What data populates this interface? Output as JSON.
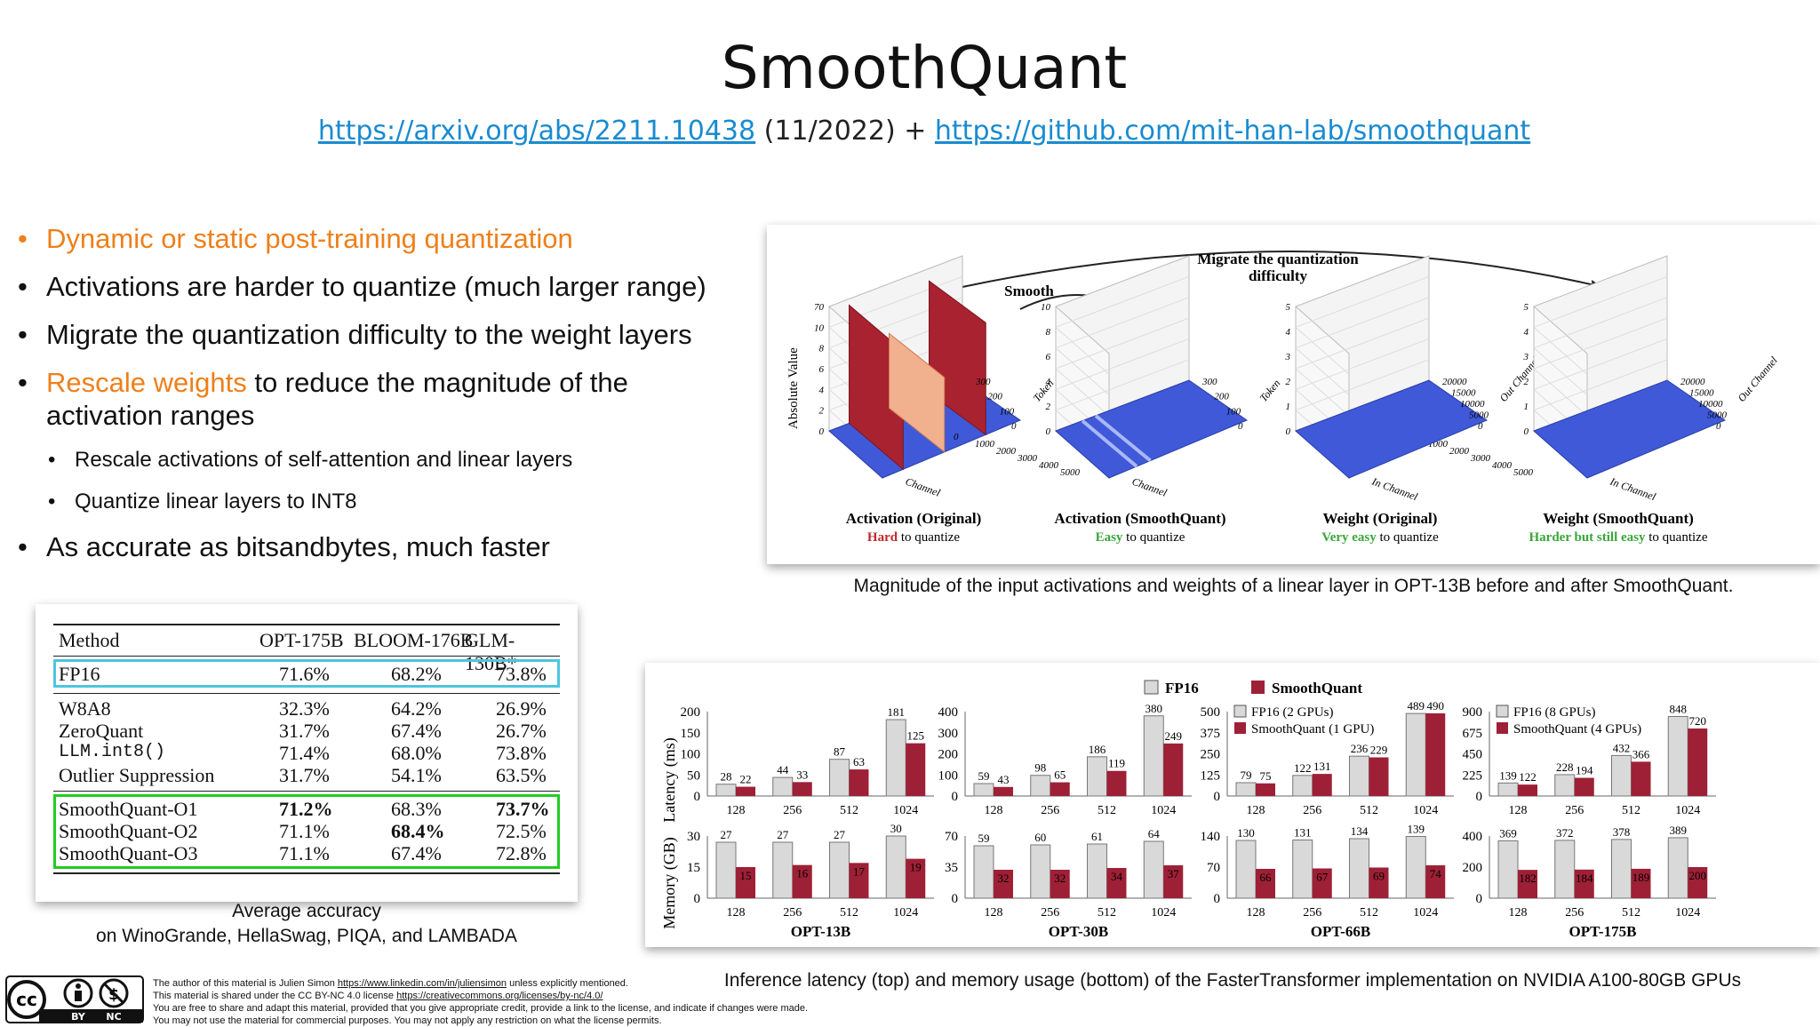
{
  "title": "SmoothQuant",
  "subtitle": {
    "link1": "https://arxiv.org/abs/2211.10438",
    "middle": " (11/2022) + ",
    "link2": "https://github.com/mit-han-lab/smoothquant"
  },
  "bullets": {
    "b1": "Dynamic or static post-training quantization",
    "b2": "Activations are harder to quantize (much larger range)",
    "b3": "Migrate the quantization difficulty to the weight layers",
    "b4_highlight": "Rescale weights",
    "b4_rest": " to reduce the magnitude of the activation ranges",
    "b4_sub1": "Rescale activations of self-attention and linear layers",
    "b4_sub2": "Quantize linear layers to INT8",
    "b5": "As accurate as bitsandbytes, much faster"
  },
  "magnitude_figure": {
    "migrate_label_1": "Migrate the quantization",
    "migrate_label_2": "difficulty",
    "smooth_label": "Smooth",
    "y_axis_label": "Absolute Value",
    "panels": [
      {
        "title": "Activation (Original)",
        "qual": "Hard",
        "rest": " to quantize",
        "qual_color": "#c0272d",
        "yticks": [
          "70",
          "10",
          "8",
          "6",
          "4",
          "2",
          "0"
        ],
        "xticks": [
          "0",
          "1000",
          "2000",
          "3000",
          "4000",
          "5000"
        ],
        "xlabel": "Channel",
        "zticks": [
          "300",
          "200",
          "100",
          "0"
        ],
        "zlabel": "Token"
      },
      {
        "title": "Activation (SmoothQuant)",
        "qual": "Easy",
        "rest": " to quantize",
        "qual_color": "#3aa639",
        "yticks": [
          "10",
          "8",
          "6",
          "4",
          "2",
          "0"
        ],
        "xticks": [
          "0",
          "1000",
          "2000",
          "3000",
          "4000",
          "5000"
        ],
        "xlabel": "Channel",
        "zticks": [
          "300",
          "200",
          "100",
          "0"
        ],
        "zlabel": "Token"
      },
      {
        "title": "Weight (Original)",
        "qual": "Very easy",
        "rest": " to quantize",
        "qual_color": "#3aa639",
        "yticks": [
          "5",
          "4",
          "3",
          "2",
          "1",
          "0"
        ],
        "xticks": [
          "0",
          "1000",
          "2000",
          "3000",
          "4000",
          "5000"
        ],
        "xlabel": "In Channel",
        "zticks": [
          "20000",
          "15000",
          "10000",
          "5000",
          "0"
        ],
        "zlabel": "Out Channel"
      },
      {
        "title": "Weight (SmoothQuant)",
        "qual": "Harder but still easy",
        "rest": " to quantize",
        "qual_color": "#3aa639",
        "yticks": [
          "5",
          "4",
          "3",
          "2",
          "1",
          "0"
        ],
        "xticks": [
          "0",
          "1000",
          "2000",
          "3000",
          "4000",
          "5000"
        ],
        "xlabel": "In Channel",
        "zticks": [
          "20000",
          "15000",
          "10000",
          "5000",
          "0"
        ],
        "zlabel": "Out Channel"
      }
    ],
    "caption": "Magnitude of the input activations and weights of a linear layer in OPT-13B before and after SmoothQuant."
  },
  "accuracy_table": {
    "headers": [
      "Method",
      "OPT-175B",
      "BLOOM-176B",
      "GLM-130B*"
    ],
    "rows": [
      [
        "FP16",
        "71.6%",
        "68.2%",
        "73.8%"
      ],
      [
        "W8A8",
        "32.3%",
        "64.2%",
        "26.9%"
      ],
      [
        "ZeroQuant",
        "31.7%",
        "67.4%",
        "26.7%"
      ],
      [
        "LLM.int8()",
        "71.4%",
        "68.0%",
        "73.8%"
      ],
      [
        "Outlier Suppression",
        "31.7%",
        "54.1%",
        "63.5%"
      ],
      [
        "SmoothQuant-O1",
        "71.2%",
        "68.3%",
        "73.7%"
      ],
      [
        "SmoothQuant-O2",
        "71.1%",
        "68.4%",
        "72.5%"
      ],
      [
        "SmoothQuant-O3",
        "71.1%",
        "67.4%",
        "72.8%"
      ]
    ],
    "caption_line1": "Average accuracy",
    "caption_line2": "on WinoGrande, HellaSwag, PIQA, and LAMBADA",
    "fp16_box_color": "#4cc6e0",
    "smoothquant_box_color": "#22cc22"
  },
  "chart_data": {
    "type": "bar",
    "legend": {
      "fp16": "FP16",
      "smoothquant": "SmoothQuant"
    },
    "categories": [
      "128",
      "256",
      "512",
      "1024"
    ],
    "y_label_latency": "Latency (ms)",
    "y_label_memory": "Memory (GB)",
    "colors": {
      "fp16": "#d9d9d9",
      "smoothquant": "#9e2036"
    },
    "caption": "Inference latency (top) and memory usage (bottom) of the FasterTransformer implementation on NVIDIA A100-80GB GPUs",
    "groups": [
      {
        "model": "OPT-13B",
        "latency_ticks": [
          "200",
          "150",
          "100",
          "50",
          "0"
        ],
        "latency_max": 200,
        "memory_ticks": [
          "30",
          "15",
          "0"
        ],
        "memory_max": 30,
        "latency_fp16": [
          28,
          44,
          87,
          181
        ],
        "latency_sq": [
          22,
          33,
          63,
          125
        ],
        "memory_fp16": [
          27,
          27,
          27,
          30
        ],
        "memory_sq": [
          15,
          16,
          17,
          19
        ]
      },
      {
        "model": "OPT-30B",
        "latency_ticks": [
          "400",
          "300",
          "200",
          "100",
          "0"
        ],
        "latency_max": 400,
        "memory_ticks": [
          "70",
          "35",
          "0"
        ],
        "memory_max": 70,
        "latency_fp16": [
          59,
          98,
          186,
          380
        ],
        "latency_sq": [
          43,
          65,
          119,
          249
        ],
        "memory_fp16": [
          59,
          60,
          61,
          64
        ],
        "memory_sq": [
          32,
          32,
          34,
          37
        ]
      },
      {
        "model": "OPT-66B",
        "latency_ticks": [
          "500",
          "375",
          "250",
          "125",
          "0"
        ],
        "latency_max": 500,
        "memory_ticks": [
          "140",
          "70",
          "0"
        ],
        "memory_max": 140,
        "legend_fp16": "FP16 (2 GPUs)",
        "legend_sq": "SmoothQuant (1 GPU)",
        "latency_fp16": [
          79,
          122,
          236,
          489
        ],
        "latency_sq": [
          75,
          131,
          229,
          490
        ],
        "memory_fp16": [
          130,
          131,
          134,
          139
        ],
        "memory_sq": [
          66,
          67,
          69,
          74
        ]
      },
      {
        "model": "OPT-175B",
        "latency_ticks": [
          "900",
          "675",
          "450",
          "225",
          "0"
        ],
        "latency_max": 900,
        "memory_ticks": [
          "400",
          "200",
          "0"
        ],
        "memory_max": 400,
        "legend_fp16": "FP16 (8 GPUs)",
        "legend_sq": "SmoothQuant (4 GPUs)",
        "latency_fp16": [
          139,
          228,
          432,
          848
        ],
        "latency_sq": [
          122,
          194,
          366,
          720
        ],
        "memory_fp16": [
          369,
          372,
          378,
          389
        ],
        "memory_sq": [
          182,
          184,
          189,
          200
        ]
      }
    ]
  },
  "license": {
    "badge_by": "BY",
    "badge_nc": "NC",
    "line1_pre": "The author of this material is Julien Simon ",
    "line1_link": "https://www.linkedin.com/in/juliensimon",
    "line1_post": " unless explicitly mentioned.",
    "line2_pre": "This material is shared under the CC BY-NC 4.0 license ",
    "line2_link": "https://creativecommons.org/licenses/by-nc/4.0/",
    "line3": "You are free to share and adapt this material, provided that you give appropriate credit, provide a link to the license, and indicate if changes were made.",
    "line4": "You may not use the material for commercial purposes. You may not apply any restriction on what the license permits."
  }
}
